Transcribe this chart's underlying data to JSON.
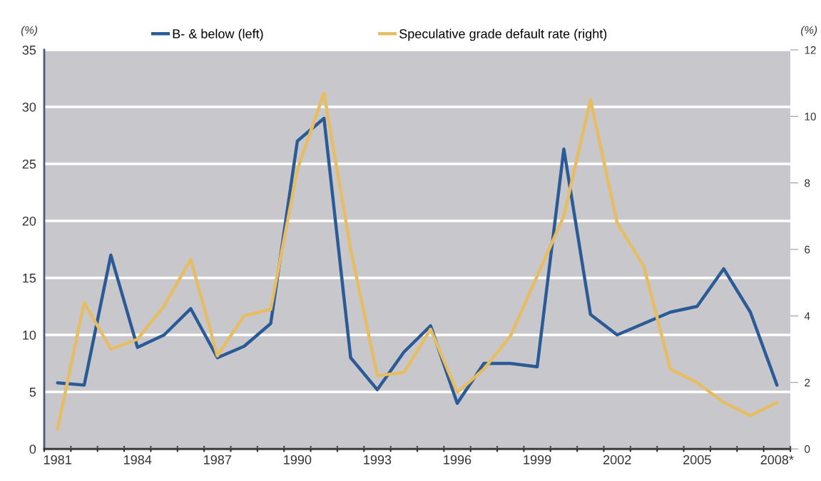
{
  "chart_data": {
    "type": "line",
    "categories": [
      "1981",
      null,
      null,
      "1984",
      null,
      null,
      "1987",
      null,
      null,
      "1990",
      null,
      null,
      "1993",
      null,
      null,
      "1996",
      null,
      null,
      "1999",
      null,
      null,
      "2002",
      null,
      null,
      "2005",
      null,
      null,
      "2008*"
    ],
    "series": [
      {
        "name": "B- & below (left)",
        "color": "#2b5a97",
        "values": [
          5.8,
          5.6,
          17,
          8.9,
          10,
          12.3,
          8,
          9,
          11,
          27,
          29,
          8,
          5.2,
          8.5,
          10.8,
          4,
          7.5,
          7.5,
          7.2,
          26.3,
          11.8,
          10,
          11,
          12,
          12.5,
          15.8,
          12,
          5.6
        ]
      },
      {
        "name": "Speculative grade default rate (right)",
        "color": "#e6bd63",
        "axis": "y2",
        "values": [
          0.6,
          4.4,
          3.0,
          3.3,
          4.3,
          5.7,
          2.8,
          4.0,
          4.2,
          8.4,
          10.7,
          6.0,
          2.2,
          2.3,
          3.6,
          1.7,
          2.4,
          3.4,
          5.2,
          7.0,
          10.5,
          6.8,
          5.5,
          2.4,
          2.0,
          1.4,
          1.0,
          1.4
        ]
      }
    ],
    "ylabel": "(%)",
    "y2label": "(%)",
    "ylim": [
      0,
      35
    ],
    "yticks": [
      0,
      5,
      10,
      15,
      20,
      25,
      30,
      35
    ],
    "y2lim": [
      0,
      12
    ],
    "y2ticks": [
      0,
      2,
      4,
      6,
      8,
      10,
      12
    ],
    "grid": "y",
    "legend": "top",
    "line_style": "solid",
    "marker": "none"
  }
}
